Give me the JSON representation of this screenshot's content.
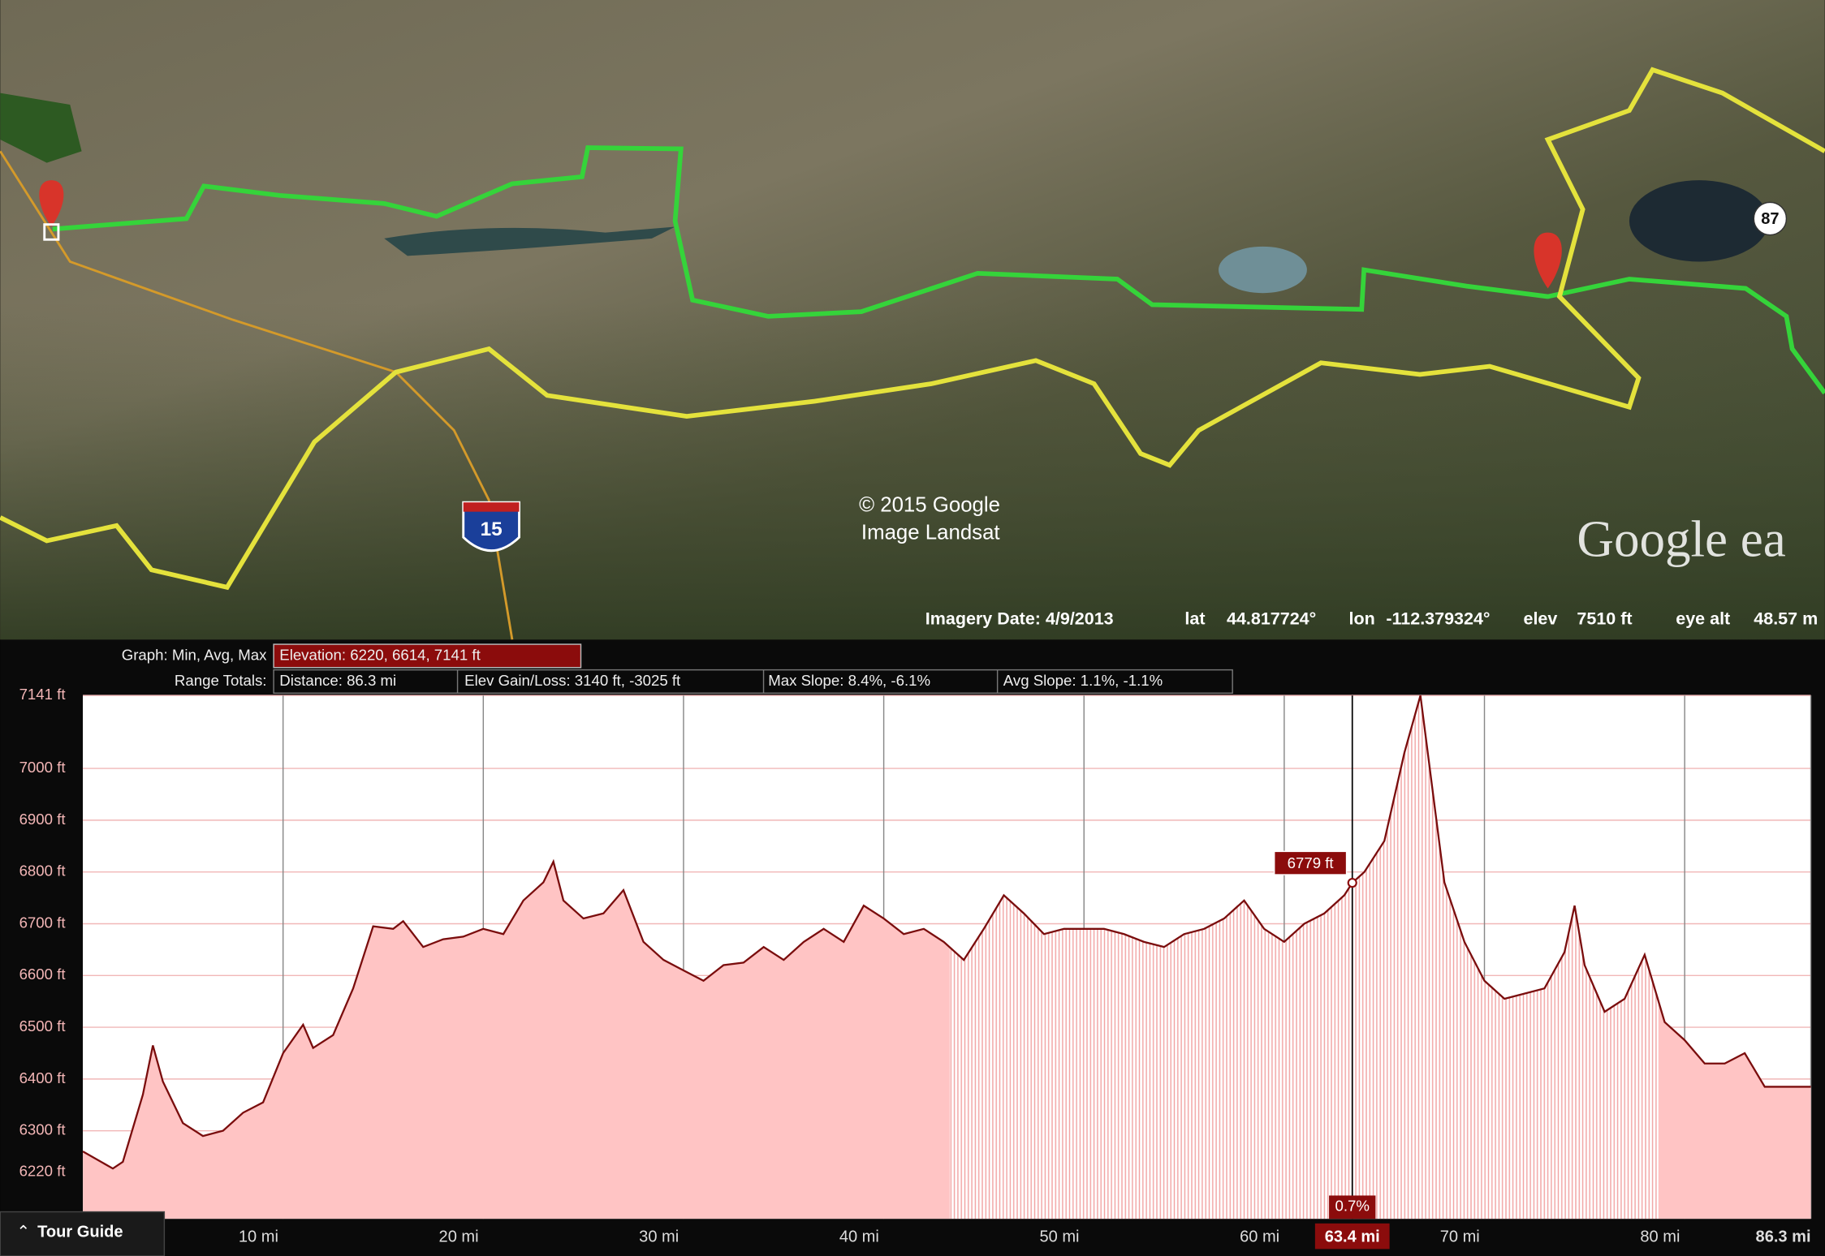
{
  "map": {
    "copyright": "© 2015 Google",
    "imagery": "Image Landsat",
    "logo": "Google ea",
    "highway": "15",
    "route_shield": "87"
  },
  "status": {
    "imagery_date": "Imagery Date: 4/9/2013",
    "lat_label": "lat",
    "lat": "44.817724°",
    "lon_label": "lon",
    "lon": "-112.379324°",
    "elev_label": "elev",
    "elev": "7510 ft",
    "eye_label": "eye alt",
    "eye": "48.57 m"
  },
  "graph": {
    "graph_label": "Graph: Min, Avg, Max",
    "elevation": "Elevation: 6220, 6614, 7141 ft",
    "range_label": "Range Totals:",
    "distance": "Distance: 86.3 mi",
    "gain_loss": "Elev Gain/Loss: 3140 ft, -3025 ft",
    "max_slope": "Max Slope: 8.4%, -6.1%",
    "avg_slope": "Avg Slope: 1.1%, -1.1%"
  },
  "tour_guide": "Tour Guide",
  "chart_data": {
    "type": "area",
    "color": "#7a0d0d",
    "fill": "#ffc4c4",
    "x": [
      0,
      1.5,
      2,
      3,
      3.5,
      4,
      5,
      6,
      7,
      8,
      9,
      10,
      11,
      11.5,
      12.5,
      13.5,
      14.5,
      15.5,
      16,
      17,
      18,
      19,
      20,
      21,
      22,
      23,
      23.5,
      24,
      25,
      26,
      27,
      28,
      29,
      30,
      31,
      32,
      33,
      34,
      35,
      36,
      37,
      38,
      39,
      40,
      41,
      42,
      43,
      44,
      45,
      46,
      47,
      48,
      49,
      50,
      51,
      52,
      53,
      54,
      55,
      56,
      57,
      58,
      59,
      60,
      61,
      62,
      63,
      63.4,
      64,
      65,
      66,
      66.8,
      68,
      69,
      70,
      71,
      72,
      73,
      74,
      74.5,
      75,
      76,
      77,
      78,
      79,
      80,
      81,
      82,
      83,
      84,
      85,
      86.3
    ],
    "values": [
      6260,
      6227,
      6240,
      6370,
      6465,
      6395,
      6315,
      6290,
      6300,
      6335,
      6355,
      6450,
      6505,
      6460,
      6485,
      6575,
      6695,
      6690,
      6705,
      6655,
      6670,
      6675,
      6690,
      6680,
      6745,
      6780,
      6820,
      6745,
      6710,
      6720,
      6765,
      6665,
      6630,
      6610,
      6590,
      6620,
      6625,
      6655,
      6630,
      6665,
      6690,
      6665,
      6735,
      6710,
      6680,
      6690,
      6665,
      6630,
      6690,
      6755,
      6720,
      6680,
      6690,
      6690,
      6690,
      6680,
      6665,
      6655,
      6680,
      6690,
      6710,
      6745,
      6690,
      6665,
      6700,
      6720,
      6755,
      6779,
      6800,
      6860,
      7030,
      7141,
      6780,
      6665,
      6590,
      6555,
      6565,
      6575,
      6645,
      6735,
      6620,
      6530,
      6555,
      6640,
      6510,
      6475,
      6430,
      6430,
      6450,
      6385,
      6385,
      6385
    ],
    "xlim": [
      0,
      86.3
    ],
    "ylim": [
      6130,
      7141
    ],
    "xticks": [
      {
        "value": 10,
        "label": "10 mi"
      },
      {
        "value": 20,
        "label": "20 mi"
      },
      {
        "value": 30,
        "label": "30 mi"
      },
      {
        "value": 40,
        "label": "40 mi"
      },
      {
        "value": 50,
        "label": "50 mi"
      },
      {
        "value": 60,
        "label": "60 mi"
      },
      {
        "value": 70,
        "label": "70 mi"
      },
      {
        "value": 80,
        "label": "80 mi"
      },
      {
        "value": 86.3,
        "label": "86.3 mi"
      }
    ],
    "yticks": [
      {
        "value": 6220,
        "label": "6220 ft"
      },
      {
        "value": 6300,
        "label": "6300 ft"
      },
      {
        "value": 6400,
        "label": "6400 ft"
      },
      {
        "value": 6500,
        "label": "6500 ft"
      },
      {
        "value": 6600,
        "label": "6600 ft"
      },
      {
        "value": 6700,
        "label": "6700 ft"
      },
      {
        "value": 6800,
        "label": "6800 ft"
      },
      {
        "value": 6900,
        "label": "6900 ft"
      },
      {
        "value": 7000,
        "label": "7000 ft"
      },
      {
        "value": 7141,
        "label": "7141 ft"
      }
    ],
    "grid": true,
    "cursor": {
      "distance": {
        "value": 63.4,
        "label": "63.4 mi"
      },
      "elevation": {
        "value": 6779,
        "label": "6779 ft"
      },
      "slope": "0.7%"
    }
  }
}
